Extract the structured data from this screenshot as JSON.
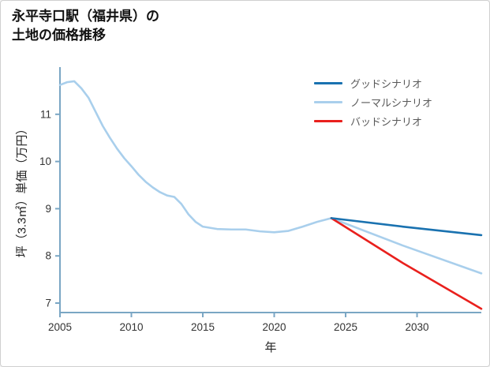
{
  "header": {
    "title_line1": "永平寺口駅（福井県）の",
    "title_line2": "土地の価格推移"
  },
  "chart_data": {
    "type": "line",
    "title": "永平寺口駅（福井県）の土地の価格推移",
    "xlabel": "年",
    "ylabel": "坪（3.3㎡）単価（万円）",
    "xlim": [
      2005,
      2034.5
    ],
    "ylim": [
      6.8,
      12.0
    ],
    "x_ticks": [
      2005,
      2010,
      2015,
      2020,
      2025,
      2030
    ],
    "y_ticks": [
      7,
      8,
      9,
      10,
      11
    ],
    "grid": false,
    "legend_position": "upper right",
    "axis_color": "#7aa6c4",
    "tick_label_color": "#333333",
    "series": [
      {
        "name": "グッドシナリオ",
        "color": "#1a72b0",
        "x": [
          2024,
          2029,
          2034.5
        ],
        "values": [
          8.8,
          8.62,
          8.44
        ]
      },
      {
        "name": "ノーマルシナリオ",
        "color": "#a9cfec",
        "x": [
          2005,
          2005.5,
          2006,
          2006.5,
          2007,
          2007.5,
          2008,
          2008.5,
          2009,
          2009.5,
          2010,
          2010.5,
          2011,
          2011.5,
          2012,
          2012.5,
          2013,
          2013.5,
          2014,
          2014.5,
          2015,
          2016,
          2017,
          2018,
          2019,
          2020,
          2021,
          2022,
          2023,
          2024,
          2029,
          2034.5
        ],
        "values": [
          11.62,
          11.68,
          11.7,
          11.55,
          11.35,
          11.05,
          10.75,
          10.5,
          10.27,
          10.07,
          9.9,
          9.72,
          9.57,
          9.45,
          9.35,
          9.28,
          9.25,
          9.1,
          8.88,
          8.72,
          8.62,
          8.57,
          8.56,
          8.56,
          8.52,
          8.5,
          8.53,
          8.62,
          8.72,
          8.8,
          8.22,
          7.63
        ]
      },
      {
        "name": "バッドシナリオ",
        "color": "#e9201d",
        "x": [
          2024,
          2029,
          2034.5
        ],
        "values": [
          8.8,
          7.85,
          6.88
        ]
      }
    ]
  }
}
